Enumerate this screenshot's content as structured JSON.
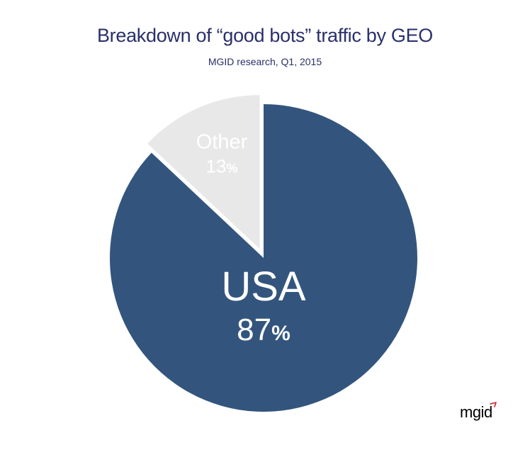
{
  "chart_data": {
    "type": "pie",
    "title": "Breakdown of “good bots” traffic by GEO",
    "subtitle": "MGID research, Q1, 2015",
    "slices": [
      {
        "label": "USA",
        "value": 87,
        "value_label": "87",
        "unit": "%",
        "color": "#33557d",
        "label_color": "#ffffff"
      },
      {
        "label": "Other",
        "value": 13,
        "value_label": "13",
        "unit": "%",
        "color": "#e8e8e9",
        "label_color": "#ffffff"
      }
    ],
    "start_angle_deg": 0,
    "direction": "clockwise",
    "exploded": "Other"
  },
  "brand": {
    "logo_text": "mgid",
    "accent_color": "#c8232c",
    "logo_color": "#9aa0a8"
  }
}
